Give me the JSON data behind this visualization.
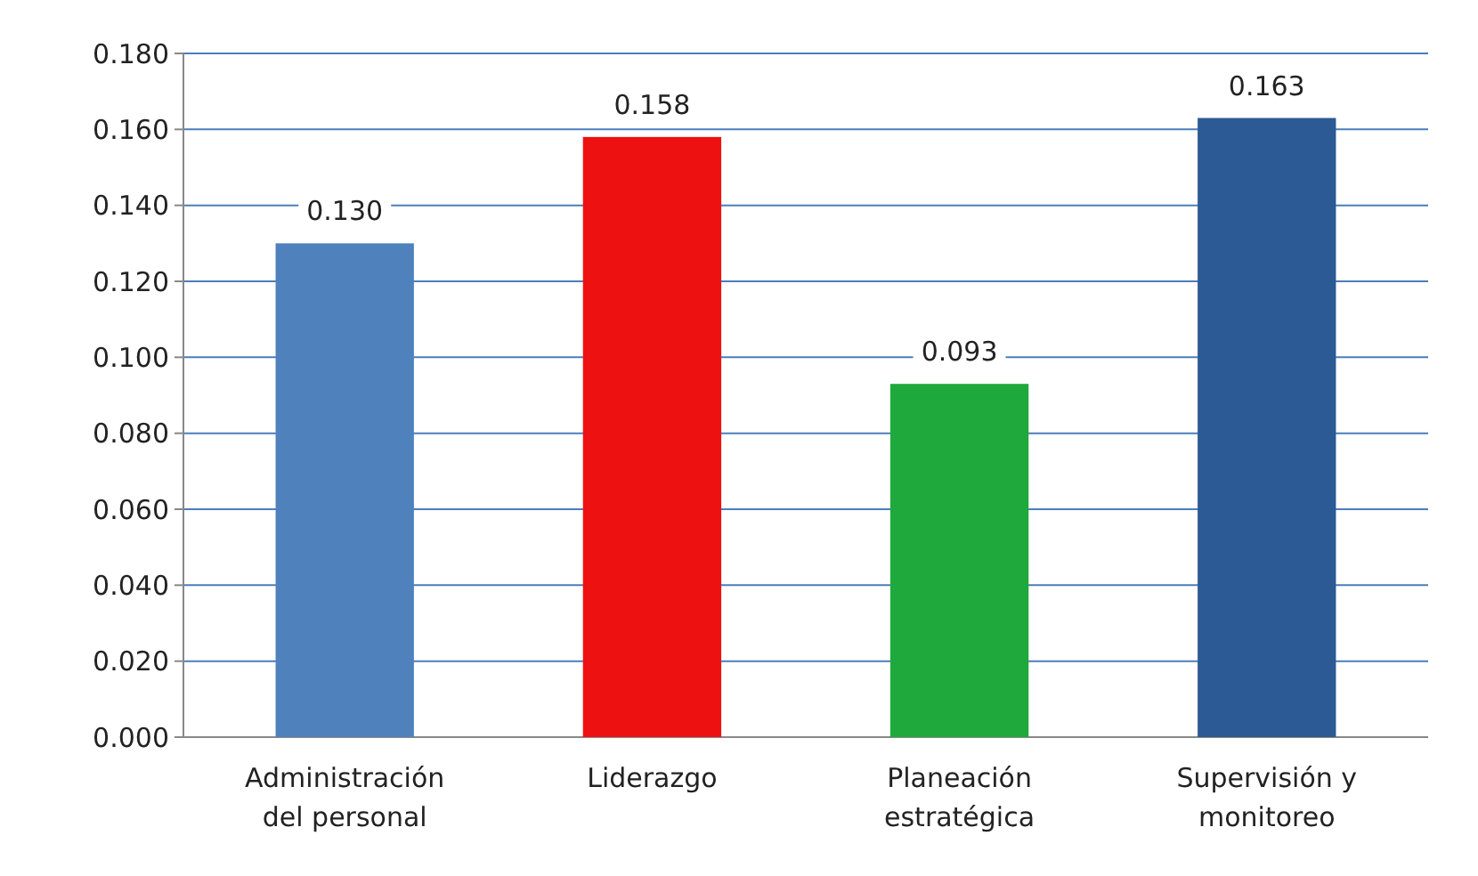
{
  "chart_data": {
    "type": "bar",
    "categories": [
      "Administración del personal",
      "Liderazgo",
      "Planeación estratégica",
      "Supervisión y monitoreo"
    ],
    "values": [
      0.13,
      0.158,
      0.093,
      0.163
    ],
    "colors": [
      "#4f81bd",
      "#ee1111",
      "#1fa83c",
      "#2c5a94"
    ],
    "ylim": [
      0,
      0.18
    ],
    "yticks": [
      {
        "value": 0,
        "label": "0.000"
      },
      {
        "value": 0.02,
        "label": "0.020"
      },
      {
        "value": 0.04,
        "label": "0.040"
      },
      {
        "value": 0.06,
        "label": "0.060"
      },
      {
        "value": 0.08,
        "label": "0.080"
      },
      {
        "value": 0.1,
        "label": "0.100"
      },
      {
        "value": 0.12,
        "label": "0.120"
      },
      {
        "value": 0.14,
        "label": "0.140"
      },
      {
        "value": 0.16,
        "label": "0.160"
      },
      {
        "value": 0.18,
        "label": "0.180"
      }
    ],
    "value_labels": [
      "0.130",
      "0.158",
      "0.093",
      "0.163"
    ],
    "grid": "y"
  }
}
